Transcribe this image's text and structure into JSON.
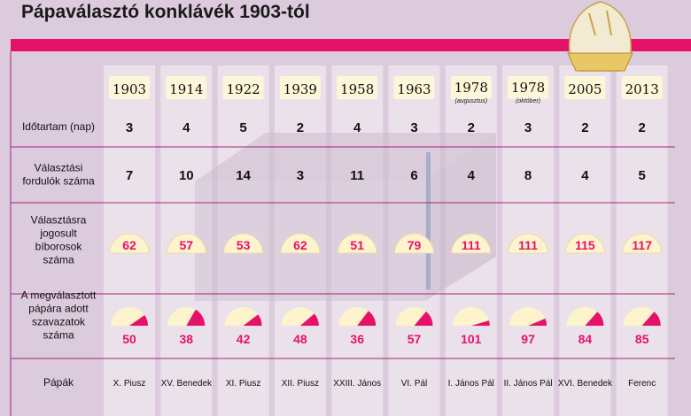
{
  "title": "Pápaválasztó konklávék 1903-tól",
  "colors": {
    "accent": "#e5126a",
    "background": "#dccbdc",
    "column": "#ebe1eb",
    "year_box": "#fdf6d8",
    "semicircle": "#fdf3cc"
  },
  "chart_data": {
    "type": "table",
    "title": "Pápaválasztó konklávék 1903-tól",
    "columns": [
      {
        "year": "1903",
        "sub": ""
      },
      {
        "year": "1914",
        "sub": ""
      },
      {
        "year": "1922",
        "sub": ""
      },
      {
        "year": "1939",
        "sub": ""
      },
      {
        "year": "1958",
        "sub": ""
      },
      {
        "year": "1963",
        "sub": ""
      },
      {
        "year": "1978",
        "sub": "(augusztus)"
      },
      {
        "year": "1978",
        "sub": "(október)"
      },
      {
        "year": "2005",
        "sub": ""
      },
      {
        "year": "2013",
        "sub": ""
      }
    ],
    "rows": {
      "duration": {
        "label": [
          "Időtartam (nap)"
        ],
        "values": [
          3,
          4,
          5,
          2,
          4,
          3,
          2,
          3,
          2,
          2
        ]
      },
      "rounds": {
        "label": [
          "Választási",
          "fordulók száma"
        ],
        "values": [
          7,
          10,
          14,
          3,
          11,
          6,
          4,
          8,
          4,
          5
        ]
      },
      "eligible": {
        "label": [
          "Választásra",
          "jogosult",
          "bíborosok",
          "száma"
        ],
        "values": [
          62,
          57,
          53,
          62,
          51,
          79,
          111,
          111,
          115,
          117
        ]
      },
      "votes": {
        "label": [
          "A megválasztott",
          "pápára adott",
          "szavazatok",
          "száma"
        ],
        "values": [
          50,
          38,
          42,
          48,
          36,
          57,
          101,
          97,
          84,
          85
        ]
      },
      "popes": {
        "label": [
          "Pápák"
        ],
        "values": [
          "X. Piusz",
          "XV. Benedek",
          "XI. Piusz",
          "XII. Piusz",
          "XXIII. János",
          "VI. Pál",
          "I. János Pál",
          "II. János Pál",
          "XVI. Benedek",
          "Ferenc"
        ]
      }
    }
  }
}
